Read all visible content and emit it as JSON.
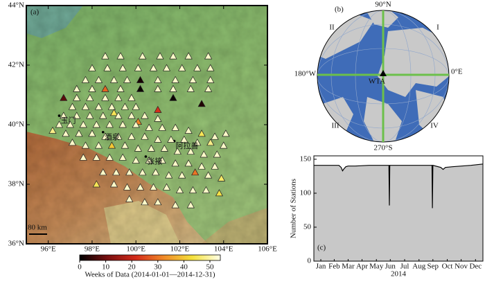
{
  "chart_data": [
    {
      "type": "map",
      "panel_label": "(a)",
      "xlim": [
        95,
        106
      ],
      "ylim": [
        36,
        44
      ],
      "xticks": [
        {
          "value": 96,
          "label": "96°E"
        },
        {
          "value": 98,
          "label": "98°E"
        },
        {
          "value": 100,
          "label": "100°E"
        },
        {
          "value": 102,
          "label": "102°E"
        },
        {
          "value": 104,
          "label": "104°E"
        },
        {
          "value": 106,
          "label": "106°E"
        }
      ],
      "yticks": [
        {
          "value": 36,
          "label": "36°N"
        },
        {
          "value": 38,
          "label": "38°N"
        },
        {
          "value": 40,
          "label": "40°N"
        },
        {
          "value": 42,
          "label": "42°N"
        },
        {
          "value": 44,
          "label": "44°N"
        }
      ],
      "stations": [
        [
          98.6,
          42.3,
          52
        ],
        [
          99.3,
          42.3,
          52
        ],
        [
          100.3,
          42.3,
          52
        ],
        [
          101.1,
          42.3,
          52
        ],
        [
          101.7,
          42.3,
          52
        ],
        [
          102.4,
          42.3,
          52
        ],
        [
          103.3,
          42.3,
          52
        ],
        [
          98.0,
          41.9,
          52
        ],
        [
          98.7,
          41.9,
          52
        ],
        [
          99.4,
          41.9,
          52
        ],
        [
          100.1,
          41.9,
          52
        ],
        [
          100.8,
          41.9,
          52
        ],
        [
          101.4,
          41.9,
          52
        ],
        [
          102.1,
          41.9,
          52
        ],
        [
          102.8,
          41.9,
          52
        ],
        [
          103.4,
          41.9,
          52
        ],
        [
          97.7,
          41.5,
          52
        ],
        [
          98.3,
          41.5,
          52
        ],
        [
          99.0,
          41.5,
          52
        ],
        [
          99.6,
          41.5,
          52
        ],
        [
          100.2,
          41.5,
          2
        ],
        [
          101.0,
          41.5,
          52
        ],
        [
          101.8,
          41.5,
          52
        ],
        [
          102.6,
          41.5,
          52
        ],
        [
          103.4,
          41.5,
          52
        ],
        [
          97.3,
          41.2,
          52
        ],
        [
          98.0,
          41.2,
          52
        ],
        [
          98.6,
          41.2,
          28
        ],
        [
          99.3,
          41.2,
          52
        ],
        [
          100.2,
          41.2,
          1
        ],
        [
          101.0,
          41.2,
          52
        ],
        [
          101.7,
          41.2,
          52
        ],
        [
          102.5,
          41.2,
          52
        ],
        [
          103.3,
          41.2,
          52
        ],
        [
          96.7,
          40.9,
          8
        ],
        [
          97.3,
          40.9,
          52
        ],
        [
          97.9,
          40.9,
          52
        ],
        [
          98.6,
          40.9,
          52
        ],
        [
          99.2,
          40.9,
          52
        ],
        [
          99.8,
          40.9,
          52
        ],
        [
          101.7,
          40.9,
          1
        ],
        [
          103.0,
          40.7,
          3
        ],
        [
          97.1,
          40.6,
          52
        ],
        [
          97.7,
          40.6,
          52
        ],
        [
          98.3,
          40.6,
          52
        ],
        [
          98.9,
          40.6,
          52
        ],
        [
          99.5,
          40.6,
          52
        ],
        [
          100.0,
          40.6,
          52
        ],
        [
          101.0,
          40.5,
          22
        ],
        [
          99.0,
          40.4,
          45
        ],
        [
          96.7,
          40.3,
          52
        ],
        [
          97.3,
          40.3,
          52
        ],
        [
          97.9,
          40.3,
          52
        ],
        [
          98.5,
          40.3,
          52
        ],
        [
          99.2,
          40.3,
          52
        ],
        [
          99.8,
          40.3,
          52
        ],
        [
          100.4,
          40.3,
          52
        ],
        [
          101.0,
          40.2,
          52
        ],
        [
          100.1,
          40.1,
          32
        ],
        [
          96.5,
          40.0,
          52
        ],
        [
          97.0,
          40.0,
          52
        ],
        [
          97.6,
          40.0,
          52
        ],
        [
          98.2,
          40.0,
          52
        ],
        [
          98.8,
          40.0,
          52
        ],
        [
          99.4,
          40.0,
          52
        ],
        [
          100.0,
          40.0,
          52
        ],
        [
          100.6,
          39.9,
          52
        ],
        [
          101.2,
          39.9,
          52
        ],
        [
          101.8,
          39.9,
          52
        ],
        [
          102.4,
          39.8,
          52
        ],
        [
          103.0,
          39.7,
          45
        ],
        [
          103.6,
          39.6,
          52
        ],
        [
          104.1,
          39.7,
          52
        ],
        [
          96.2,
          39.8,
          48
        ],
        [
          96.8,
          39.7,
          52
        ],
        [
          97.4,
          39.7,
          52
        ],
        [
          98.0,
          39.7,
          52
        ],
        [
          98.6,
          39.6,
          52
        ],
        [
          99.2,
          39.6,
          52
        ],
        [
          99.8,
          39.6,
          52
        ],
        [
          100.4,
          39.6,
          52
        ],
        [
          101.0,
          39.5,
          52
        ],
        [
          101.6,
          39.5,
          52
        ],
        [
          102.2,
          39.5,
          52
        ],
        [
          102.8,
          39.4,
          52
        ],
        [
          103.4,
          39.4,
          48
        ],
        [
          104.0,
          39.3,
          52
        ],
        [
          97.1,
          39.4,
          52
        ],
        [
          97.7,
          39.3,
          52
        ],
        [
          98.3,
          39.3,
          52
        ],
        [
          98.9,
          39.3,
          40
        ],
        [
          99.5,
          39.3,
          52
        ],
        [
          100.1,
          39.2,
          52
        ],
        [
          100.7,
          39.2,
          52
        ],
        [
          101.3,
          39.2,
          52
        ],
        [
          101.9,
          39.1,
          52
        ],
        [
          102.5,
          39.1,
          52
        ],
        [
          103.1,
          39.0,
          52
        ],
        [
          103.7,
          39.0,
          52
        ],
        [
          97.6,
          38.9,
          52
        ],
        [
          98.2,
          38.9,
          52
        ],
        [
          98.8,
          38.9,
          52
        ],
        [
          99.4,
          38.9,
          52
        ],
        [
          100.0,
          38.8,
          52
        ],
        [
          100.6,
          38.8,
          52
        ],
        [
          101.2,
          38.8,
          52
        ],
        [
          101.8,
          38.7,
          52
        ],
        [
          102.4,
          38.7,
          52
        ],
        [
          103.0,
          38.6,
          52
        ],
        [
          103.6,
          38.6,
          52
        ],
        [
          98.5,
          38.4,
          52
        ],
        [
          99.1,
          38.4,
          52
        ],
        [
          99.7,
          38.4,
          52
        ],
        [
          100.3,
          38.4,
          52
        ],
        [
          100.9,
          38.4,
          52
        ],
        [
          101.5,
          38.3,
          52
        ],
        [
          102.1,
          38.3,
          52
        ],
        [
          102.7,
          38.4,
          30
        ],
        [
          103.3,
          38.3,
          52
        ],
        [
          103.9,
          38.2,
          46
        ],
        [
          98.2,
          38.0,
          45
        ],
        [
          99.0,
          38.0,
          52
        ],
        [
          99.6,
          37.9,
          52
        ],
        [
          100.2,
          37.9,
          52
        ],
        [
          100.8,
          37.9,
          52
        ],
        [
          101.4,
          37.9,
          52
        ],
        [
          102.0,
          37.8,
          52
        ],
        [
          102.6,
          37.8,
          52
        ],
        [
          103.2,
          37.8,
          52
        ],
        [
          103.8,
          37.7,
          44
        ],
        [
          99.7,
          37.5,
          52
        ],
        [
          100.4,
          37.4,
          52
        ],
        [
          101.0,
          37.4,
          52
        ],
        [
          101.8,
          37.3,
          52
        ],
        [
          102.5,
          37.3,
          52
        ]
      ],
      "places": [
        {
          "label": "玉门",
          "lon": 96.5,
          "lat": 40.3
        },
        {
          "label": "酒泉",
          "lon": 98.5,
          "lat": 39.75
        },
        {
          "label": "张掖",
          "lon": 100.45,
          "lat": 38.93
        },
        {
          "label": "阿拉善",
          "lon": 101.75,
          "lat": 39.45
        }
      ],
      "scale_bar": "80 km",
      "colorbar": {
        "label": "Weeks of Data (2014-01-01—2014-12-31)",
        "lim": [
          0,
          54
        ],
        "ticks": [
          0,
          10,
          20,
          30,
          40,
          50
        ],
        "colors": [
          "#000000",
          "#7a1010",
          "#d42a1a",
          "#f08a28",
          "#f4e03a",
          "#ffffe8"
        ]
      }
    },
    {
      "type": "globe",
      "panel_label": "(b)",
      "north": "90°N",
      "east": "0°E",
      "west": "180°W",
      "south": "270°S",
      "quadrants": [
        "I",
        "II",
        "III",
        "IV"
      ],
      "station": "WTA",
      "ocean_color": "#3f6cb8",
      "land_color": "#c9c9c9",
      "axis_color": "#6cc04a"
    },
    {
      "type": "area",
      "panel_label": "(c)",
      "ylabel": "Number of Stations",
      "xlabel": "2014",
      "x": [
        1,
        55,
        60,
        63,
        66,
        70,
        75,
        90,
        120,
        163,
        164,
        165,
        200,
        256,
        257,
        258,
        275,
        280,
        285,
        300,
        340,
        366
      ],
      "values": [
        141,
        141,
        138,
        133,
        136,
        139,
        140,
        140,
        141,
        141,
        82,
        141,
        141,
        141,
        78,
        141,
        138,
        135,
        138,
        139,
        141,
        143
      ],
      "xlim": [
        1,
        366
      ],
      "ylim": [
        0,
        155
      ],
      "xticks": [
        {
          "value": 16,
          "label": "Jan"
        },
        {
          "value": 45,
          "label": "Feb"
        },
        {
          "value": 75,
          "label": "Mar"
        },
        {
          "value": 105,
          "label": "Apr"
        },
        {
          "value": 136,
          "label": "May"
        },
        {
          "value": 166,
          "label": "Jun"
        },
        {
          "value": 197,
          "label": "Jul"
        },
        {
          "value": 228,
          "label": "Aug"
        },
        {
          "value": 258,
          "label": "Sep"
        },
        {
          "value": 289,
          "label": "Oct"
        },
        {
          "value": 319,
          "label": "Nov"
        },
        {
          "value": 350,
          "label": "Dec"
        }
      ],
      "yticks": [
        0,
        50,
        100,
        150
      ],
      "color": "#c8c8c8"
    }
  ]
}
